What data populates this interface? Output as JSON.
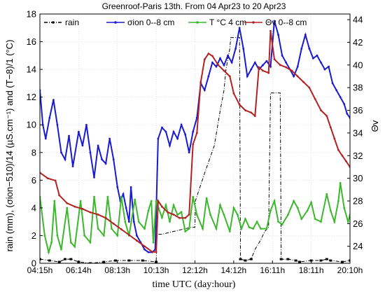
{
  "chart_data": {
    "type": "line",
    "title": "Greenroof-Paris 13th. From 04 Apr23 to 20 Apr23",
    "xlabel": "time UTC (day:hour)",
    "ylabel_left": "rain (mm), (σion−510)/14 (µS.cm⁻¹) and (T−8)/1 (°C)",
    "ylabel_right": "Θv",
    "ylim_left": [
      0,
      18
    ],
    "ylim_right": [
      22.5,
      44.5
    ],
    "yticks_left": [
      "0",
      "2",
      "4",
      "6",
      "8",
      "10",
      "12",
      "14",
      "16",
      "18"
    ],
    "yticks_right": [
      "24",
      "26",
      "28",
      "30",
      "32",
      "34",
      "36",
      "38",
      "40",
      "42",
      "44"
    ],
    "x_tick_labels": [
      "04:15h",
      "06:14h",
      "08:13h",
      "10:13h",
      "12:12h",
      "14:12h",
      "16:11h",
      "18:11h",
      "20:10h"
    ],
    "grid": true,
    "legend_position": "top",
    "series": [
      {
        "name": "rain",
        "color": "#000000",
        "style": "dash-dot",
        "axis": "left",
        "points": [
          [
            0,
            0.3
          ],
          [
            0.5,
            0.2
          ],
          [
            1.0,
            0.1
          ],
          [
            1.3,
            0.3
          ],
          [
            1.6,
            0.3
          ],
          [
            2.0,
            0.1
          ],
          [
            2.6,
            0
          ],
          [
            3.3,
            0.1
          ],
          [
            3.9,
            0.2
          ],
          [
            4.6,
            0.2
          ],
          [
            5.3,
            0.2
          ],
          [
            6.0,
            0.1
          ],
          [
            6.04,
            2.1
          ],
          [
            6.3,
            2.1
          ],
          [
            6.6,
            2.2
          ],
          [
            6.9,
            2.3
          ],
          [
            7.2,
            2.4
          ],
          [
            7.5,
            2.5
          ],
          [
            7.8,
            2.6
          ],
          [
            8.0,
            2.6
          ],
          [
            8.02,
            4.5
          ],
          [
            8.5,
            6.5
          ],
          [
            9.0,
            8.5
          ],
          [
            9.3,
            11.0
          ],
          [
            9.5,
            12.5
          ],
          [
            9.6,
            14.0
          ],
          [
            9.8,
            15.5
          ],
          [
            9.85,
            16.3
          ],
          [
            10.3,
            16.3
          ],
          [
            10.35,
            0.3
          ],
          [
            10.6,
            0.2
          ],
          [
            10.9,
            0.3
          ],
          [
            11.1,
            1.0
          ],
          [
            11.4,
            1.7
          ],
          [
            11.6,
            2.3
          ],
          [
            11.8,
            2.6
          ],
          [
            11.9,
            12.3
          ],
          [
            12.4,
            12.3
          ],
          [
            12.45,
            0.3
          ],
          [
            12.8,
            0.3
          ],
          [
            13.2,
            0.2
          ],
          [
            13.4,
            0.1
          ],
          [
            14.0,
            0.2
          ],
          [
            14.5,
            0.2
          ],
          [
            14.8,
            0.3
          ],
          [
            15.0,
            0.2
          ],
          [
            15.6,
            0.1
          ],
          [
            16,
            0.2
          ]
        ]
      },
      {
        "name": "σion 0--8 cm",
        "color": "#1a1ad0",
        "axis": "left",
        "points": [
          [
            0,
            12.5
          ],
          [
            0.15,
            10.0
          ],
          [
            0.3,
            9.0
          ],
          [
            0.5,
            10.5
          ],
          [
            0.7,
            11.8
          ],
          [
            0.9,
            10.0
          ],
          [
            1.1,
            8.0
          ],
          [
            1.3,
            7.5
          ],
          [
            1.5,
            9.2
          ],
          [
            1.7,
            7.0
          ],
          [
            2.0,
            9.5
          ],
          [
            2.2,
            8.5
          ],
          [
            2.4,
            10.0
          ],
          [
            2.6,
            8.0
          ],
          [
            2.8,
            6.2
          ],
          [
            3.0,
            8.5
          ],
          [
            3.2,
            7.5
          ],
          [
            3.4,
            7.2
          ],
          [
            3.6,
            9.0
          ],
          [
            3.8,
            7.5
          ],
          [
            4.0,
            5.5
          ],
          [
            4.15,
            4.5
          ],
          [
            4.3,
            5.0
          ],
          [
            4.45,
            4.0
          ],
          [
            4.6,
            3.0
          ],
          [
            4.7,
            5.5
          ],
          [
            4.85,
            3.0
          ],
          [
            5.0,
            2.0
          ],
          [
            5.2,
            1.5
          ],
          [
            5.4,
            1.0
          ],
          [
            5.6,
            0.8
          ],
          [
            5.8,
            0.8
          ],
          [
            5.95,
            1.0
          ],
          [
            6.1,
            9.0
          ],
          [
            6.3,
            9.8
          ],
          [
            6.5,
            9.5
          ],
          [
            6.7,
            8.5
          ],
          [
            6.9,
            9.5
          ],
          [
            7.1,
            9.0
          ],
          [
            7.3,
            10.0
          ],
          [
            7.5,
            9.3
          ],
          [
            7.7,
            8.0
          ],
          [
            7.9,
            9.5
          ],
          [
            8.1,
            10.5
          ],
          [
            8.3,
            13.0
          ],
          [
            8.5,
            12.5
          ],
          [
            8.7,
            13.5
          ],
          [
            8.9,
            14.5
          ],
          [
            9.1,
            14.2
          ],
          [
            9.3,
            14.8
          ],
          [
            9.5,
            14.3
          ],
          [
            9.7,
            15.0
          ],
          [
            9.9,
            14.5
          ],
          [
            10.1,
            15.5
          ],
          [
            10.3,
            17.0
          ],
          [
            10.5,
            15.5
          ],
          [
            10.7,
            13.5
          ],
          [
            10.9,
            14.0
          ],
          [
            11.1,
            14.5
          ],
          [
            11.3,
            14.0
          ],
          [
            11.5,
            14.3
          ],
          [
            11.7,
            14.6
          ],
          [
            11.9,
            14.2
          ],
          [
            12.1,
            17.5
          ],
          [
            12.3,
            16.5
          ],
          [
            12.5,
            15.0
          ],
          [
            12.7,
            14.5
          ],
          [
            12.9,
            14.0
          ],
          [
            13.1,
            13.5
          ],
          [
            13.3,
            14.2
          ],
          [
            13.5,
            15.5
          ],
          [
            13.7,
            16.5
          ],
          [
            13.9,
            15.5
          ],
          [
            14.1,
            14.8
          ],
          [
            14.3,
            15.0
          ],
          [
            14.5,
            14.5
          ],
          [
            14.7,
            14.0
          ],
          [
            14.9,
            14.2
          ],
          [
            15.1,
            13.0
          ],
          [
            15.3,
            12.5
          ],
          [
            15.5,
            12.0
          ],
          [
            15.7,
            11.5
          ],
          [
            15.85,
            10.8
          ],
          [
            16,
            10.5
          ]
        ]
      },
      {
        "name": "T °C 4 cm",
        "color": "#3cb82c",
        "axis": "left",
        "points": [
          [
            0,
            4.8
          ],
          [
            0.25,
            2.0
          ],
          [
            0.45,
            0.8
          ],
          [
            0.6,
            1.5
          ],
          [
            0.75,
            4.5
          ],
          [
            0.9,
            2.0
          ],
          [
            1.1,
            1.0
          ],
          [
            1.4,
            4.0
          ],
          [
            1.6,
            1.5
          ],
          [
            1.8,
            1.2
          ],
          [
            2.1,
            4.5
          ],
          [
            2.3,
            2.0
          ],
          [
            2.6,
            1.5
          ],
          [
            2.8,
            4.8
          ],
          [
            3.0,
            2.5
          ],
          [
            3.3,
            2.0
          ],
          [
            3.5,
            4.8
          ],
          [
            3.7,
            2.5
          ],
          [
            4.0,
            2.0
          ],
          [
            4.2,
            4.8
          ],
          [
            4.4,
            3.0
          ],
          [
            4.6,
            2.0
          ],
          [
            4.9,
            4.6
          ],
          [
            5.1,
            3.0
          ],
          [
            5.4,
            2.5
          ],
          [
            5.6,
            3.8
          ],
          [
            5.75,
            4.5
          ],
          [
            5.85,
            1.5
          ],
          [
            6.0,
            4.5
          ],
          [
            6.3,
            3.3
          ],
          [
            6.5,
            4.2
          ],
          [
            6.7,
            3.0
          ],
          [
            6.9,
            4.2
          ],
          [
            7.1,
            3.5
          ],
          [
            7.3,
            3.7
          ],
          [
            7.5,
            2.3
          ],
          [
            7.7,
            2.5
          ],
          [
            7.9,
            4.8
          ],
          [
            8.1,
            3.5
          ],
          [
            8.4,
            2.5
          ],
          [
            8.6,
            4.7
          ],
          [
            8.8,
            3.5
          ],
          [
            9.1,
            2.5
          ],
          [
            9.3,
            4.2
          ],
          [
            9.5,
            3.5
          ],
          [
            9.8,
            2.3
          ],
          [
            10.0,
            4.0
          ],
          [
            10.2,
            3.5
          ],
          [
            10.4,
            2.5
          ],
          [
            10.6,
            3.2
          ],
          [
            10.8,
            2.6
          ],
          [
            11.0,
            2.5
          ],
          [
            11.2,
            3.0
          ],
          [
            11.4,
            2.5
          ],
          [
            11.7,
            2.5
          ],
          [
            11.9,
            3.8
          ],
          [
            12.1,
            4.5
          ],
          [
            12.3,
            3.0
          ],
          [
            12.5,
            2.8
          ],
          [
            12.8,
            3.5
          ],
          [
            13.1,
            4.5
          ],
          [
            13.3,
            4.0
          ],
          [
            13.5,
            3.2
          ],
          [
            13.8,
            3.8
          ],
          [
            14.0,
            4.4
          ],
          [
            14.2,
            3.2
          ],
          [
            14.5,
            3.0
          ],
          [
            14.8,
            5.0
          ],
          [
            15.0,
            3.8
          ],
          [
            15.2,
            3.0
          ],
          [
            15.4,
            4.5
          ],
          [
            15.5,
            5.8
          ],
          [
            15.7,
            4.0
          ],
          [
            15.9,
            3.0
          ],
          [
            16,
            3.5
          ]
        ]
      },
      {
        "name": "Θv 0--8 cm",
        "color": "#b32222",
        "axis": "right",
        "points": [
          [
            0,
            30.5
          ],
          [
            0.4,
            30.0
          ],
          [
            0.8,
            29.8
          ],
          [
            1.0,
            28.5
          ],
          [
            1.4,
            27.8
          ],
          [
            1.8,
            27.5
          ],
          [
            2.2,
            27.3
          ],
          [
            2.6,
            27.0
          ],
          [
            3.0,
            26.8
          ],
          [
            3.4,
            26.5
          ],
          [
            3.8,
            26.0
          ],
          [
            4.2,
            25.5
          ],
          [
            4.6,
            25.0
          ],
          [
            5.0,
            24.5
          ],
          [
            5.4,
            24.0
          ],
          [
            5.8,
            23.5
          ],
          [
            6.0,
            23.5
          ],
          [
            6.1,
            28.0
          ],
          [
            6.3,
            27.5
          ],
          [
            6.6,
            27.0
          ],
          [
            6.9,
            26.8
          ],
          [
            7.2,
            26.5
          ],
          [
            7.5,
            26.5
          ],
          [
            7.7,
            26.8
          ],
          [
            7.9,
            33.0
          ],
          [
            8.1,
            34.0
          ],
          [
            8.3,
            38.5
          ],
          [
            8.5,
            40.5
          ],
          [
            8.7,
            41.0
          ],
          [
            8.9,
            40.8
          ],
          [
            9.2,
            40.0
          ],
          [
            9.5,
            39.5
          ],
          [
            9.8,
            39.0
          ],
          [
            10.0,
            37.5
          ],
          [
            10.3,
            36.5
          ],
          [
            10.6,
            36.0
          ],
          [
            10.9,
            35.8
          ],
          [
            11.1,
            35.5
          ],
          [
            11.3,
            39.8
          ],
          [
            11.5,
            39.5
          ],
          [
            11.8,
            39.3
          ],
          [
            11.9,
            43.0
          ],
          [
            12.1,
            40.5
          ],
          [
            12.4,
            40.0
          ],
          [
            12.7,
            39.8
          ],
          [
            13.0,
            39.5
          ],
          [
            13.3,
            39.0
          ],
          [
            13.6,
            38.5
          ],
          [
            13.9,
            38.0
          ],
          [
            14.2,
            37.0
          ],
          [
            14.5,
            36.0
          ],
          [
            14.8,
            35.5
          ],
          [
            15.0,
            34.5
          ],
          [
            15.2,
            33.5
          ],
          [
            15.4,
            32.5
          ],
          [
            15.6,
            32.0
          ],
          [
            15.8,
            31.5
          ],
          [
            16,
            31.0
          ]
        ]
      }
    ]
  }
}
